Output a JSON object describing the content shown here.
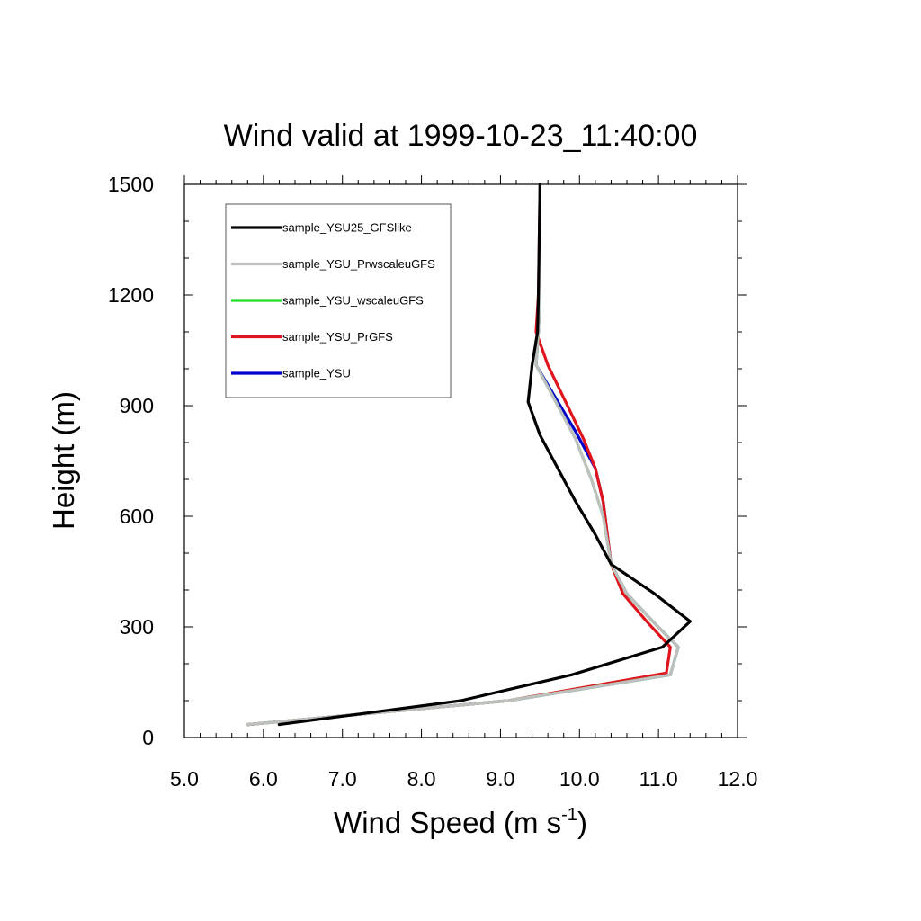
{
  "chart_data": {
    "type": "line",
    "title": "Wind valid at 1999-10-23_11:40:00",
    "xlabel": "Wind Speed (m s",
    "xlabel_superscript": "-1",
    "xlabel_suffix": ")",
    "ylabel": "Height (m)",
    "xlim": [
      5.0,
      12.0
    ],
    "ylim": [
      0,
      1500
    ],
    "x_ticks": [
      5.0,
      6.0,
      7.0,
      8.0,
      9.0,
      10.0,
      11.0,
      12.0
    ],
    "x_tick_labels": [
      "5.0",
      "6.0",
      "7.0",
      "8.0",
      "9.0",
      "10.0",
      "11.0",
      "12.0"
    ],
    "x_minor_step": 0.2,
    "y_ticks": [
      0,
      300,
      600,
      900,
      1200,
      1500
    ],
    "y_tick_labels": [
      "0",
      "300",
      "600",
      "900",
      "1200",
      "1500"
    ],
    "y_minor_step": 100,
    "grid": false,
    "legend_position": "top-left",
    "series": [
      {
        "name": "sample_YSU",
        "color": "#0000cc",
        "points": [
          [
            5.8,
            35
          ],
          [
            9.1,
            100
          ],
          [
            11.15,
            170
          ],
          [
            11.25,
            245
          ],
          [
            10.95,
            310
          ],
          [
            10.6,
            390
          ],
          [
            10.4,
            470
          ],
          [
            10.3,
            640
          ],
          [
            10.2,
            730
          ],
          [
            9.95,
            830
          ],
          [
            9.45,
            1010
          ],
          [
            9.48,
            1100
          ],
          [
            9.5,
            1200
          ],
          [
            9.5,
            1500
          ]
        ]
      },
      {
        "name": "sample_YSU_PrGFS",
        "color": "#e0141c",
        "points": [
          [
            5.8,
            35
          ],
          [
            9.1,
            100
          ],
          [
            11.1,
            175
          ],
          [
            11.15,
            245
          ],
          [
            10.85,
            315
          ],
          [
            10.55,
            390
          ],
          [
            10.4,
            470
          ],
          [
            10.3,
            640
          ],
          [
            10.2,
            730
          ],
          [
            10.05,
            810
          ],
          [
            9.6,
            1010
          ],
          [
            9.45,
            1100
          ],
          [
            9.48,
            1200
          ],
          [
            9.5,
            1500
          ]
        ]
      },
      {
        "name": "sample_YSU_wscaleuGFS",
        "color": "#22e022",
        "points": [
          [
            5.8,
            35
          ],
          [
            9.1,
            100
          ],
          [
            11.15,
            170
          ],
          [
            11.25,
            245
          ],
          [
            10.95,
            310
          ],
          [
            10.6,
            390
          ],
          [
            10.4,
            470
          ],
          [
            10.3,
            600
          ],
          [
            10.15,
            700
          ],
          [
            9.95,
            810
          ],
          [
            9.45,
            1010
          ],
          [
            9.48,
            1100
          ],
          [
            9.5,
            1200
          ],
          [
            9.5,
            1500
          ]
        ]
      },
      {
        "name": "sample_YSU_PrwscaleuGFS",
        "color": "#bfbfbf",
        "points": [
          [
            5.8,
            35
          ],
          [
            9.1,
            100
          ],
          [
            11.15,
            170
          ],
          [
            11.25,
            245
          ],
          [
            10.95,
            310
          ],
          [
            10.6,
            390
          ],
          [
            10.4,
            470
          ],
          [
            10.3,
            600
          ],
          [
            10.15,
            700
          ],
          [
            9.95,
            810
          ],
          [
            9.45,
            1010
          ],
          [
            9.48,
            1100
          ],
          [
            9.5,
            1200
          ],
          [
            9.5,
            1500
          ]
        ]
      },
      {
        "name": "sample_YSU25_GFSlike",
        "color": "#000000",
        "points": [
          [
            6.2,
            35
          ],
          [
            8.5,
            100
          ],
          [
            9.9,
            170
          ],
          [
            11.05,
            245
          ],
          [
            11.4,
            315
          ],
          [
            10.95,
            390
          ],
          [
            10.4,
            470
          ],
          [
            10.2,
            550
          ],
          [
            9.95,
            640
          ],
          [
            9.5,
            820
          ],
          [
            9.35,
            910
          ],
          [
            9.4,
            1010
          ],
          [
            9.47,
            1100
          ],
          [
            9.48,
            1200
          ],
          [
            9.5,
            1500
          ]
        ]
      }
    ],
    "legend_order": [
      "sample_YSU25_GFSlike",
      "sample_YSU_PrwscaleuGFS",
      "sample_YSU_wscaleuGFS",
      "sample_YSU_PrGFS",
      "sample_YSU"
    ]
  }
}
